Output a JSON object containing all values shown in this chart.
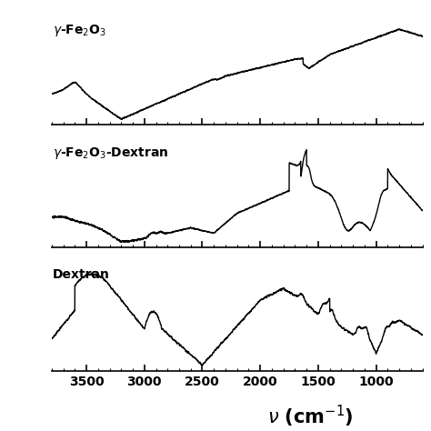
{
  "xlim": [
    3800,
    600
  ],
  "xticks": [
    3500,
    3000,
    2500,
    2000,
    1500,
    1000
  ],
  "background_color": "#ffffff",
  "line_color": "#000000",
  "line_width": 1.0,
  "label_fontsize": 10,
  "xlabel_fontsize": 15,
  "tick_fontsize": 10
}
